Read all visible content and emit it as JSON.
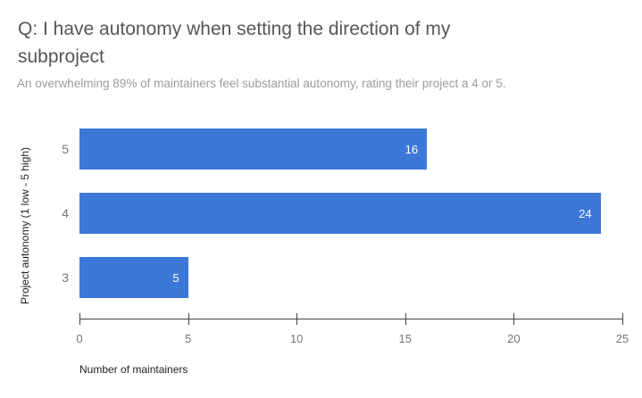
{
  "chart_data": {
    "type": "bar",
    "orientation": "horizontal",
    "title": "Q: I have autonomy when setting the direction of my subproject",
    "subtitle": "An overwhelming 89% of maintainers feel substantial autonomy, rating their project a 4 or 5.",
    "categories": [
      "5",
      "4",
      "3"
    ],
    "values": [
      16,
      24,
      5
    ],
    "xlabel": "Number of maintainers",
    "ylabel": "Project autonomy (1 low - 5 high)",
    "xlim": [
      0,
      25
    ],
    "xticks": [
      0,
      5,
      10,
      15,
      20,
      25
    ],
    "grid": false,
    "legend": "none",
    "colors": {
      "bar": "#3d78d8",
      "value_label": "#ffffff",
      "axis_line": "#424242",
      "tick_label": "#757575",
      "category_label": "#757575",
      "title": "#565656",
      "subtitle": "#9b9b9b",
      "axis_title": "#212121"
    }
  }
}
